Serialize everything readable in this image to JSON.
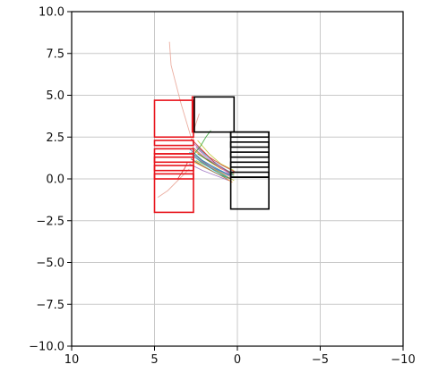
{
  "chart_data": {
    "type": "scatter",
    "title": "",
    "xlabel": "",
    "ylabel": "",
    "xlim": [
      10,
      -10
    ],
    "ylim": [
      10,
      -10
    ],
    "grid": true,
    "xticks": [
      10,
      5,
      0,
      -5,
      -10
    ],
    "xtick_labels": [
      "10",
      "5",
      "0",
      "−5",
      "−10"
    ],
    "yticks": [
      -10,
      -7.5,
      -5,
      -2.5,
      0,
      2.5,
      5,
      7.5,
      10
    ],
    "ytick_labels": [
      "−10.0",
      "−7.5",
      "−5.0",
      "−2.5",
      "0.0",
      "2.5",
      "5.0",
      "7.5",
      "10.0"
    ],
    "rectangles": [
      {
        "group": "red",
        "x0": 2.65,
        "x1": 5.0,
        "y0": -2.0,
        "y1": 1.5
      },
      {
        "group": "red",
        "x0": 2.65,
        "x1": 5.0,
        "y0": 2.5,
        "y1": 4.7
      },
      {
        "group": "red",
        "x0": 2.65,
        "x1": 5.0,
        "y0": 0.0,
        "y1": 0.3
      },
      {
        "group": "red",
        "x0": 2.65,
        "x1": 5.0,
        "y0": 0.5,
        "y1": 0.8
      },
      {
        "group": "red",
        "x0": 2.65,
        "x1": 5.0,
        "y0": 1.0,
        "y1": 1.3
      },
      {
        "group": "red",
        "x0": 2.65,
        "x1": 5.0,
        "y0": 1.5,
        "y1": 1.8
      },
      {
        "group": "red",
        "x0": 2.65,
        "x1": 5.0,
        "y0": 2.0,
        "y1": 2.3
      },
      {
        "group": "red",
        "x0": 2.6,
        "x1": 2.72,
        "y0": 2.8,
        "y1": 4.9
      },
      {
        "group": "black",
        "x0": -1.9,
        "x1": 0.4,
        "y0": -1.8,
        "y1": 0.1
      },
      {
        "group": "black",
        "x0": -1.9,
        "x1": 0.4,
        "y0": 0.1,
        "y1": 2.8
      },
      {
        "group": "black",
        "x0": -1.9,
        "x1": 0.4,
        "y0": 0.1,
        "y1": 0.4
      },
      {
        "group": "black",
        "x0": -1.9,
        "x1": 0.4,
        "y0": 0.7,
        "y1": 1.0
      },
      {
        "group": "black",
        "x0": -1.9,
        "x1": 0.4,
        "y0": 1.3,
        "y1": 1.6
      },
      {
        "group": "black",
        "x0": -1.9,
        "x1": 0.4,
        "y0": 1.9,
        "y1": 2.2
      },
      {
        "group": "black",
        "x0": -1.9,
        "x1": 0.4,
        "y0": 2.5,
        "y1": 2.8
      },
      {
        "group": "black",
        "x0": 0.2,
        "x1": 2.6,
        "y0": 2.8,
        "y1": 4.9
      }
    ],
    "trajectories": [
      {
        "color": "#1f77b4",
        "x": [
          2.7,
          1.9,
          1.1,
          0.3
        ],
        "y": [
          1.5,
          0.9,
          0.5,
          0.2
        ]
      },
      {
        "color": "#ff7f0e",
        "x": [
          2.6,
          1.8,
          1.0,
          0.2
        ],
        "y": [
          1.7,
          1.1,
          0.6,
          0.3
        ]
      },
      {
        "color": "#2ca02c",
        "x": [
          2.8,
          2.0,
          1.2,
          0.4
        ],
        "y": [
          1.2,
          0.7,
          0.3,
          0.0
        ]
      },
      {
        "color": "#d62728",
        "x": [
          2.5,
          1.7,
          0.9,
          0.1
        ],
        "y": [
          2.0,
          1.3,
          0.8,
          0.4
        ]
      },
      {
        "color": "#9467bd",
        "x": [
          2.9,
          2.1,
          1.3,
          0.5
        ],
        "y": [
          0.9,
          0.5,
          0.2,
          -0.1
        ]
      },
      {
        "color": "#8c564b",
        "x": [
          2.7,
          1.9,
          1.0,
          0.2
        ],
        "y": [
          1.9,
          1.2,
          0.7,
          0.3
        ]
      },
      {
        "color": "#e377c2",
        "x": [
          2.6,
          1.8,
          1.1,
          0.3
        ],
        "y": [
          1.3,
          0.8,
          0.4,
          0.1
        ]
      },
      {
        "color": "#7f7f7f",
        "x": [
          2.8,
          2.0,
          1.2,
          0.5
        ],
        "y": [
          1.6,
          1.0,
          0.5,
          0.2
        ]
      },
      {
        "color": "#bcbd22",
        "x": [
          2.5,
          1.7,
          0.9,
          0.2
        ],
        "y": [
          1.1,
          0.7,
          0.3,
          -0.1
        ]
      },
      {
        "color": "#17becf",
        "x": [
          2.7,
          1.9,
          1.1,
          0.3
        ],
        "y": [
          2.2,
          1.4,
          0.8,
          0.3
        ]
      },
      {
        "color": "#1f77b4",
        "x": [
          2.9,
          2.1,
          1.2,
          0.4
        ],
        "y": [
          1.8,
          1.1,
          0.6,
          0.2
        ]
      },
      {
        "color": "#ff7f0e",
        "x": [
          2.6,
          1.8,
          1.0,
          0.3
        ],
        "y": [
          1.0,
          0.6,
          0.2,
          -0.2
        ]
      },
      {
        "color": "#2ca02c",
        "x": [
          2.4,
          1.6,
          0.9,
          0.2
        ],
        "y": [
          1.5,
          1.0,
          0.6,
          0.2
        ]
      },
      {
        "color": "#d62728",
        "x": [
          2.8,
          2.0,
          1.3,
          0.5
        ],
        "y": [
          2.4,
          1.6,
          0.9,
          0.4
        ]
      },
      {
        "color": "#9467bd",
        "x": [
          2.5,
          1.8,
          1.0,
          0.3
        ],
        "y": [
          1.9,
          1.2,
          0.7,
          0.2
        ]
      },
      {
        "color": "#8c564b",
        "x": [
          2.7,
          2.0,
          1.2,
          0.4
        ],
        "y": [
          1.4,
          0.9,
          0.4,
          0.0
        ]
      },
      {
        "color": "#e377c2",
        "x": [
          2.6,
          1.9,
          1.2,
          0.5
        ],
        "y": [
          2.1,
          1.3,
          0.8,
          0.3
        ]
      },
      {
        "color": "#7f7f7f",
        "x": [
          2.8,
          2.1,
          1.4,
          0.6
        ],
        "y": [
          1.2,
          0.8,
          0.4,
          0.0
        ]
      },
      {
        "color": "#bcbd22",
        "x": [
          2.4,
          1.7,
          1.0,
          0.2
        ],
        "y": [
          2.3,
          1.5,
          0.9,
          0.5
        ]
      },
      {
        "color": "#17becf",
        "x": [
          2.9,
          2.2,
          1.4,
          0.6
        ],
        "y": [
          1.6,
          1.0,
          0.5,
          0.1
        ]
      },
      {
        "color": "#e8a090",
        "x": [
          2.8,
          3.4,
          4.0,
          4.1
        ],
        "y": [
          2.5,
          4.5,
          6.8,
          8.2
        ]
      },
      {
        "color": "#e8a090",
        "x": [
          2.9,
          3.5,
          4.2,
          4.8
        ],
        "y": [
          0.6,
          0.0,
          -0.7,
          -1.1
        ]
      },
      {
        "color": "#e8a090",
        "x": [
          2.7,
          2.6,
          2.4,
          2.3
        ],
        "y": [
          2.2,
          3.0,
          3.6,
          3.9
        ]
      },
      {
        "color": "#2ca02c",
        "x": [
          2.6,
          2.2,
          1.9,
          1.6
        ],
        "y": [
          1.5,
          2.0,
          2.5,
          2.9
        ]
      },
      {
        "color": "#d62728",
        "x": [
          3.0,
          3.2,
          3.4,
          3.6
        ],
        "y": [
          1.0,
          0.6,
          0.3,
          0.0
        ]
      }
    ]
  }
}
